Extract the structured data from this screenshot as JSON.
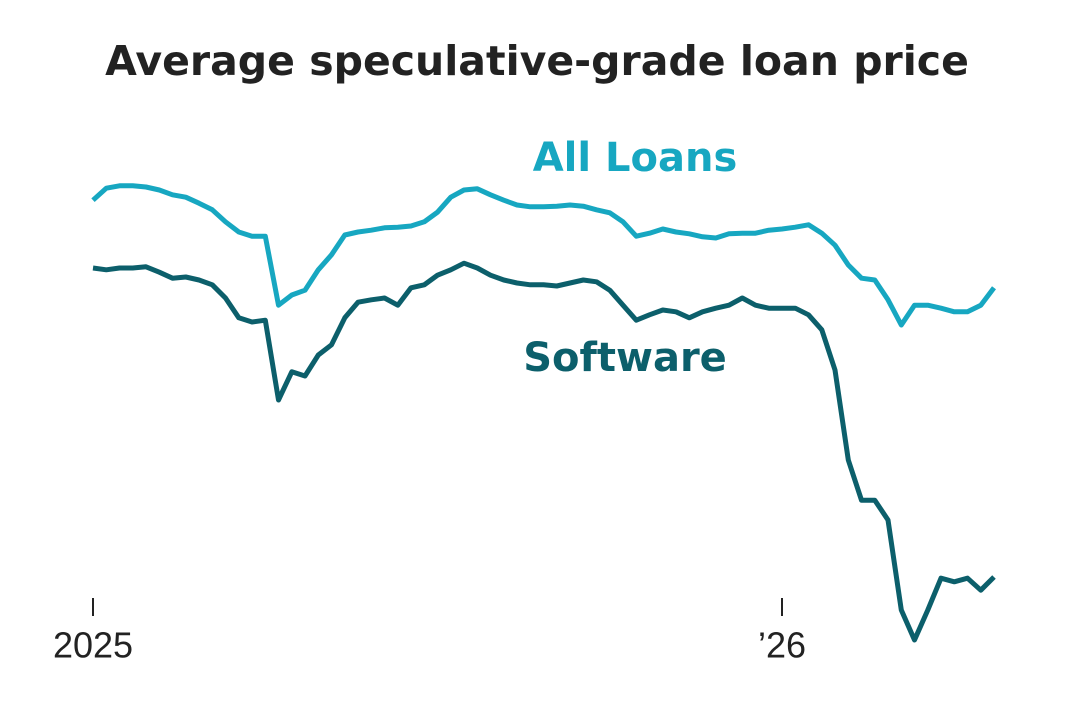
{
  "chart_data": {
    "type": "line",
    "title": "Average speculative-grade loan price",
    "xlim": [
      0,
      68
    ],
    "ylim": [
      89.5,
      98
    ],
    "xticks": [
      {
        "value": 0,
        "label": "2025"
      },
      {
        "value": 52,
        "label": "’26"
      }
    ],
    "series": [
      {
        "name": "All Loans",
        "color": "#17a7c1",
        "values": [
          97.08,
          97.28,
          97.32,
          97.32,
          97.3,
          97.25,
          97.17,
          97.13,
          97.03,
          96.92,
          96.72,
          96.55,
          96.48,
          96.48,
          95.33,
          95.5,
          95.58,
          95.92,
          96.17,
          96.5,
          96.55,
          96.58,
          96.62,
          96.63,
          96.65,
          96.72,
          96.88,
          97.13,
          97.25,
          97.27,
          97.17,
          97.08,
          97.0,
          96.97,
          96.97,
          96.98,
          97.0,
          96.98,
          96.92,
          96.87,
          96.72,
          96.48,
          96.53,
          96.6,
          96.55,
          96.52,
          96.47,
          96.45,
          96.52,
          96.53,
          96.53,
          96.58,
          96.6,
          96.63,
          96.67,
          96.53,
          96.33,
          96.0,
          95.78,
          95.75,
          95.42,
          95.0,
          95.33,
          95.33,
          95.28,
          95.22,
          95.22,
          95.33,
          95.62
        ]
      },
      {
        "name": "Software",
        "color": "#0c5f6b",
        "values": [
          95.95,
          95.92,
          95.95,
          95.95,
          95.97,
          95.88,
          95.78,
          95.8,
          95.75,
          95.67,
          95.45,
          95.12,
          95.05,
          95.08,
          93.75,
          94.22,
          94.15,
          94.5,
          94.67,
          95.12,
          95.38,
          95.42,
          95.45,
          95.33,
          95.62,
          95.67,
          95.83,
          95.92,
          96.03,
          95.95,
          95.83,
          95.75,
          95.7,
          95.67,
          95.67,
          95.65,
          95.7,
          95.75,
          95.72,
          95.58,
          95.33,
          95.08,
          95.17,
          95.25,
          95.22,
          95.12,
          95.22,
          95.28,
          95.33,
          95.45,
          95.33,
          95.28,
          95.28,
          95.28,
          95.17,
          94.92,
          94.25,
          92.75,
          92.08,
          92.08,
          91.75,
          90.25,
          89.75,
          90.25,
          90.78,
          90.72,
          90.78,
          90.58,
          90.8
        ]
      }
    ]
  }
}
